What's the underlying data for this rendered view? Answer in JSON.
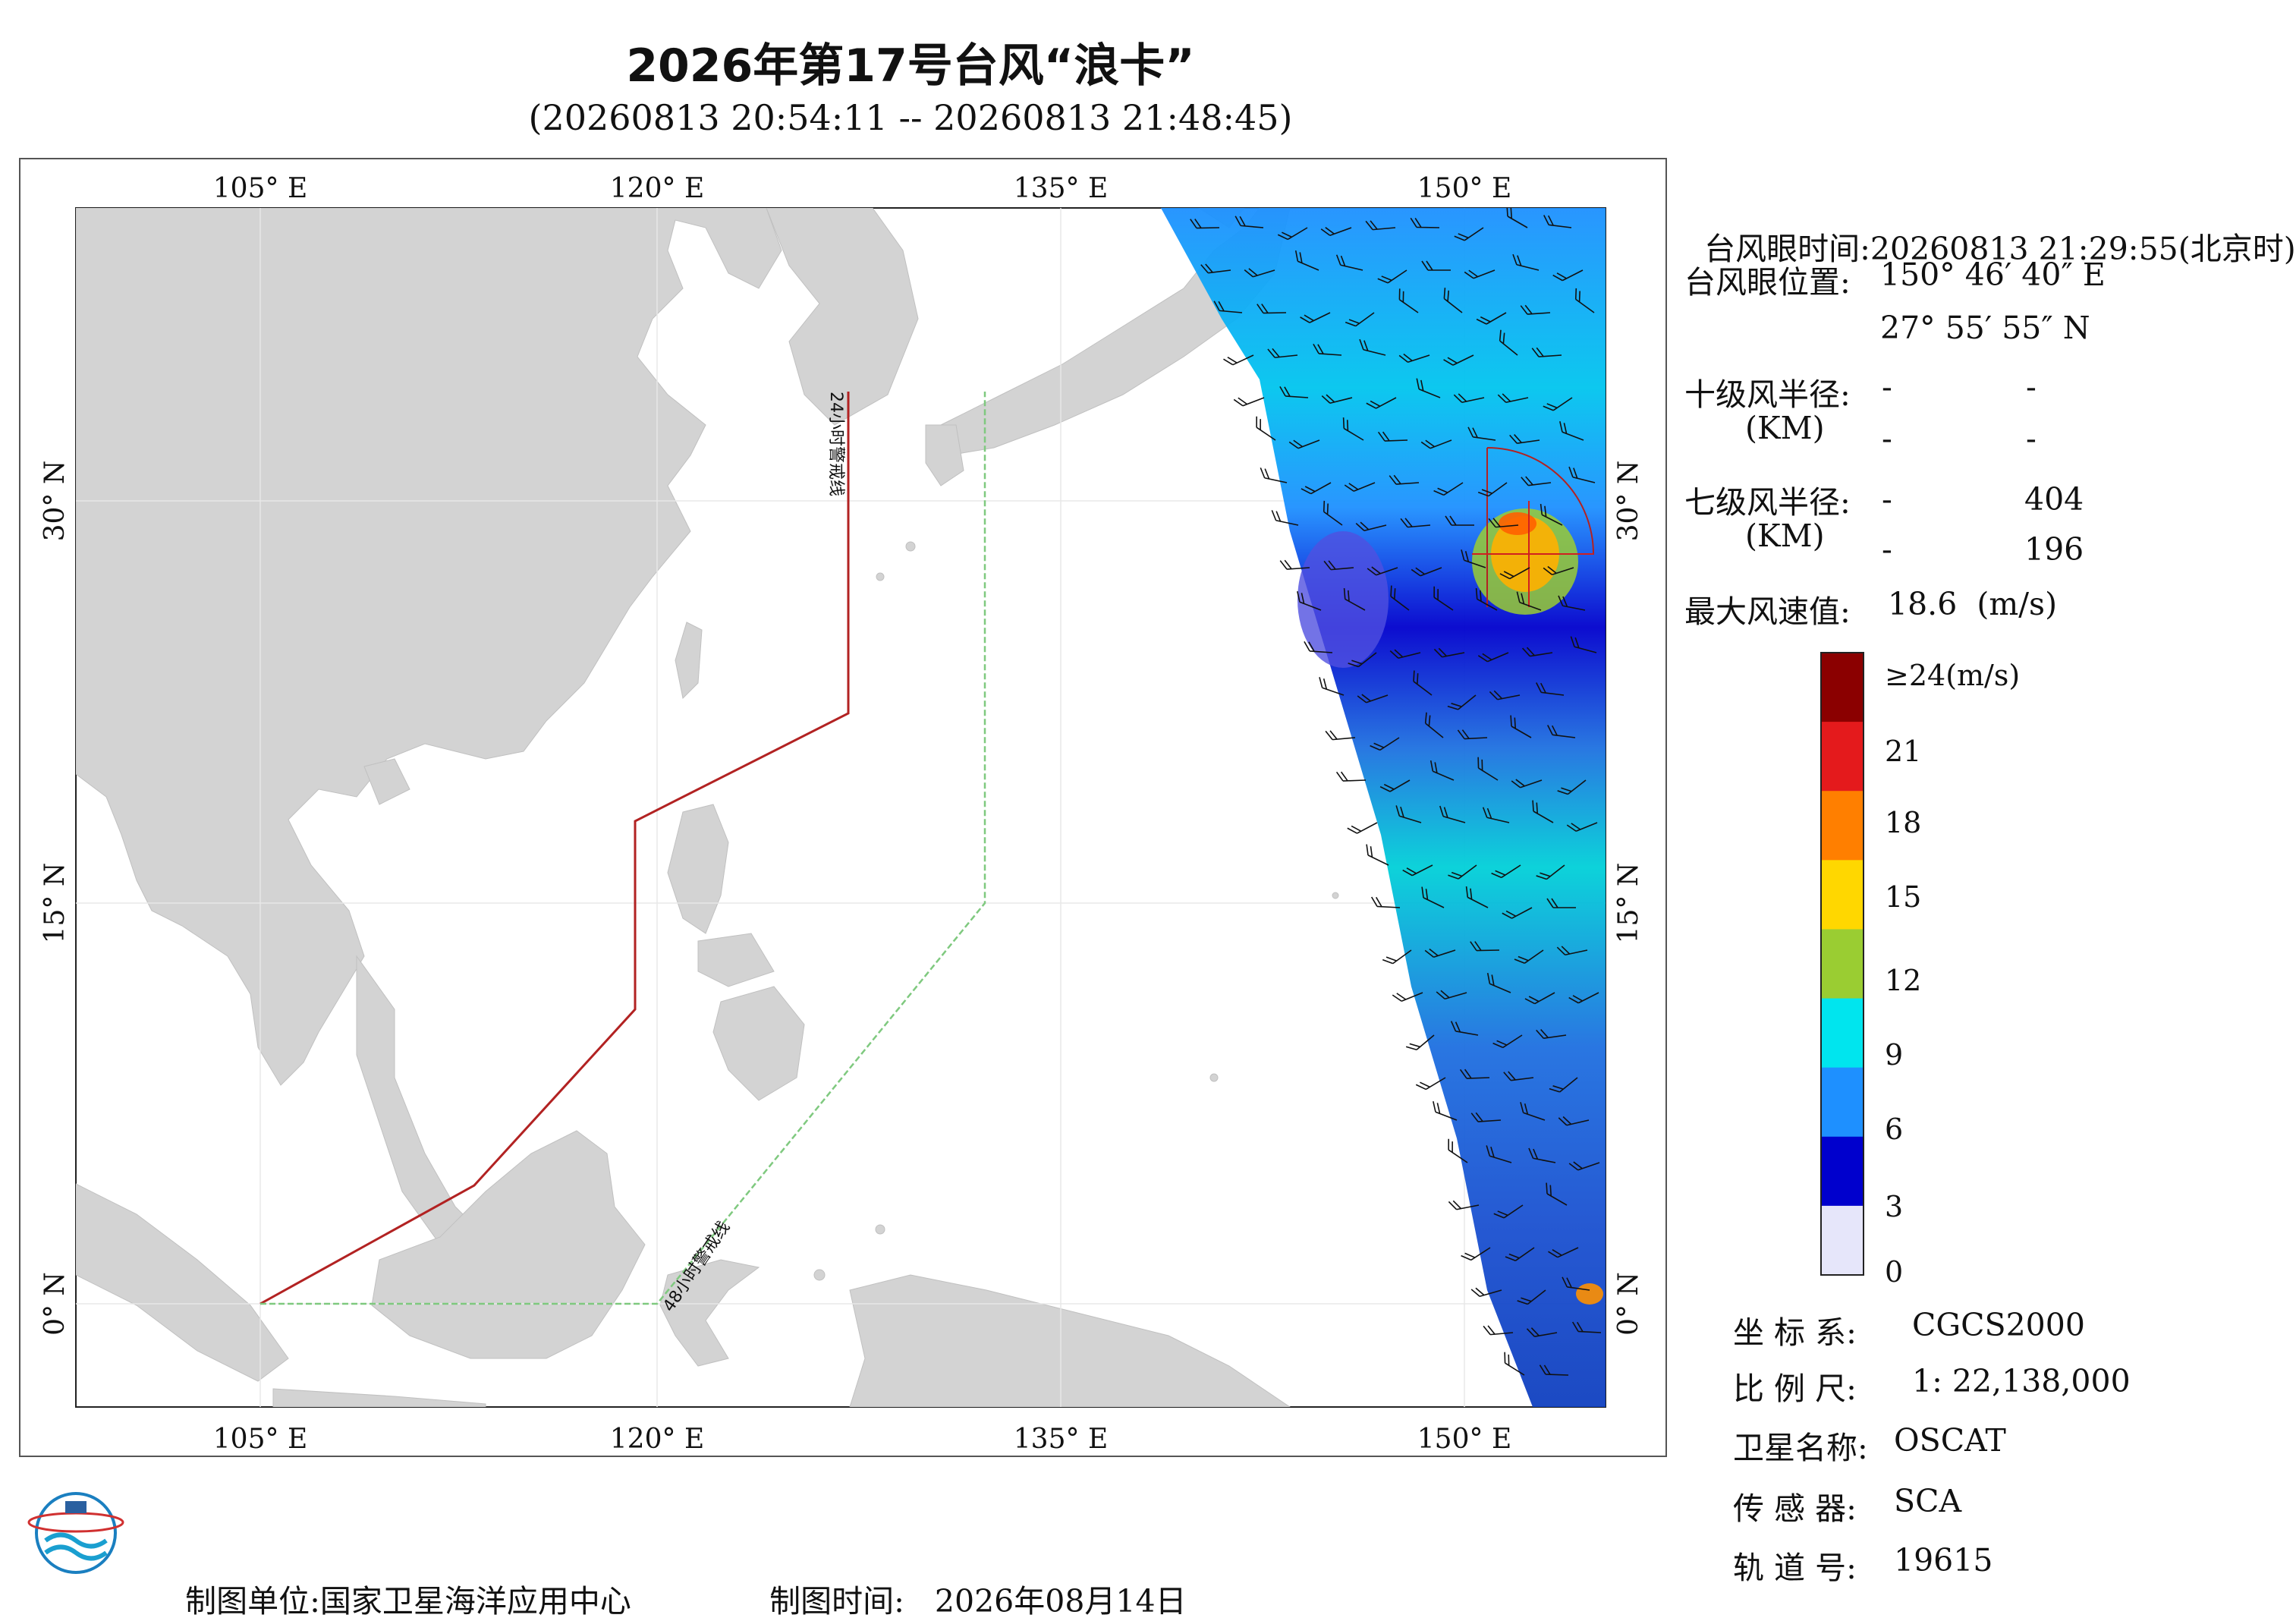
{
  "title": "2026年第17号台风“浪卡”",
  "subtitle": "(20260813 20:54:11 -- 20260813 21:48:45)",
  "map": {
    "lon_ticks": [
      "105° E",
      "120° E",
      "135° E",
      "150° E"
    ],
    "lat_ticks": [
      "30° N",
      "15° N",
      "0° N"
    ],
    "warning_24h_label": "24小时警戒线",
    "warning_48h_label": "48小时警戒线",
    "colors": {
      "land": "#d3d3d3",
      "ocean": "#ffffff",
      "line_24h": "#b22222",
      "line_48h": "#7fc97f"
    }
  },
  "info": {
    "eye_time_label": "台风眼时间:",
    "eye_time_value": "20260813 21:29:55(北京时)",
    "eye_pos_label": "台风眼位置:",
    "eye_lon": "150° 46′ 40″ E",
    "eye_lat": "27° 55′ 55″ N",
    "r10_label": "十级风半径:",
    "km_label": "(KM)",
    "r10_values": [
      "-",
      "-",
      "-",
      "-"
    ],
    "r7_label": "七级风半径:",
    "r7_values": [
      "-",
      "404",
      "-",
      "196"
    ],
    "max_wind_label": "最大风速值:",
    "max_wind_value": "18.6  (m/s)"
  },
  "colorbar": {
    "labels": [
      "≥24(m/s)",
      "21",
      "18",
      "15",
      "12",
      "9",
      "6",
      "3",
      "0"
    ],
    "colors": [
      "#8b0000",
      "#e41a1c",
      "#ff7f00",
      "#ffd700",
      "#9acd32",
      "#00e5ee",
      "#1e90ff",
      "#0000cd",
      "#e6e6fa"
    ]
  },
  "meta": {
    "crs_label": "坐 标 系:",
    "crs_value": "CGCS2000",
    "scale_label": "比 例 尺:",
    "scale_value": "1: 22,138,000",
    "sat_label": "卫星名称:",
    "sat_value": "OSCAT",
    "sensor_label": "传 感 器:",
    "sensor_value": "SCA",
    "orbit_label": "轨 道 号:",
    "orbit_value": "19615"
  },
  "footer": {
    "unit_label": "制图单位:",
    "unit_value": "国家卫星海洋应用中心",
    "time_label": "制图时间:",
    "time_value": "2026年08月14日"
  },
  "logo_icon": "globe-logo-icon"
}
